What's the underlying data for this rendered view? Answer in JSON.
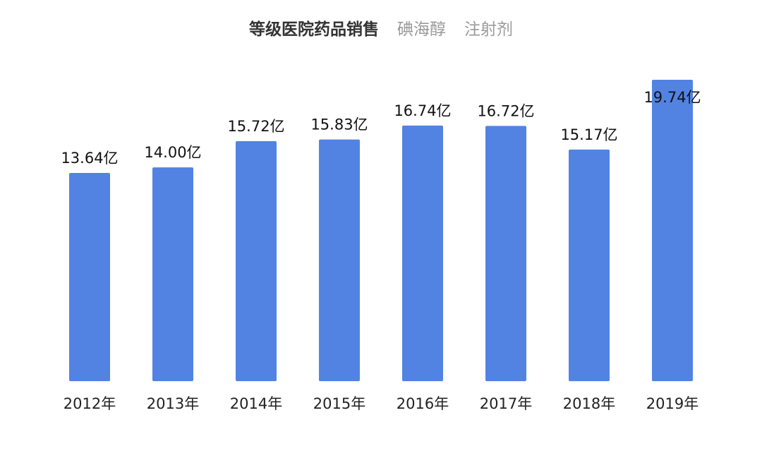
{
  "header": {
    "title": "等级医院药品销售",
    "subtitles": [
      "碘海醇",
      "注射剂"
    ]
  },
  "colors": {
    "bar": "#5283e3",
    "label": "#111111"
  },
  "chart_data": {
    "type": "bar",
    "categories": [
      "2012年",
      "2013年",
      "2014年",
      "2015年",
      "2016年",
      "2017年",
      "2018年",
      "2019年"
    ],
    "values": [
      13.64,
      14.0,
      15.72,
      15.83,
      16.74,
      16.72,
      15.17,
      19.74
    ],
    "data_labels": [
      "13.64亿",
      "14.00亿",
      "15.72亿",
      "15.83亿",
      "16.74亿",
      "16.72亿",
      "15.17亿",
      "19.74亿"
    ],
    "title": "等级医院药品销售",
    "ylim": [
      0,
      19.74
    ],
    "grid": false,
    "legend": "none"
  }
}
